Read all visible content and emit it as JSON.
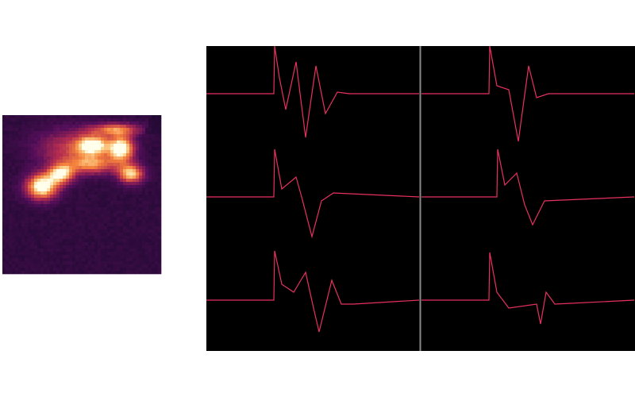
{
  "chart_data": [
    {
      "type": "line",
      "xlim": [
        0,
        268
      ],
      "ylim": [
        -68,
        60
      ],
      "color": "#e8315f",
      "x": [
        0,
        85,
        86,
        92,
        100,
        113,
        125,
        138,
        150,
        165,
        180,
        268
      ],
      "values": [
        0,
        0,
        60,
        20,
        -20,
        40,
        -55,
        35,
        -25,
        2,
        0,
        0
      ]
    },
    {
      "type": "line",
      "xlim": [
        0,
        268
      ],
      "ylim": [
        -68,
        60
      ],
      "color": "#e8315f",
      "x": [
        0,
        85,
        86,
        95,
        110,
        122,
        135,
        145,
        160,
        268
      ],
      "values": [
        0,
        0,
        60,
        10,
        5,
        -60,
        35,
        -5,
        0,
        0
      ]
    },
    {
      "type": "line",
      "xlim": [
        0,
        268
      ],
      "ylim": [
        -68,
        60
      ],
      "color": "#e8315f",
      "x": [
        0,
        85,
        86,
        95,
        113,
        120,
        133,
        145,
        160,
        268
      ],
      "values": [
        0,
        0,
        60,
        10,
        25,
        0,
        -50,
        -5,
        5,
        0
      ]
    },
    {
      "type": "line",
      "xlim": [
        0,
        268
      ],
      "ylim": [
        -68,
        60
      ],
      "color": "#e8315f",
      "x": [
        0,
        95,
        96,
        105,
        120,
        130,
        140,
        155,
        268
      ],
      "values": [
        0,
        0,
        60,
        15,
        30,
        -10,
        -35,
        -5,
        0
      ]
    },
    {
      "type": "line",
      "xlim": [
        0,
        268
      ],
      "ylim": [
        -68,
        60
      ],
      "color": "#e8315f",
      "x": [
        0,
        85,
        86,
        95,
        110,
        125,
        135,
        142,
        158,
        170,
        185,
        268
      ],
      "values": [
        0,
        0,
        62,
        20,
        10,
        35,
        -10,
        -40,
        25,
        -5,
        -5,
        0
      ]
    },
    {
      "type": "line",
      "xlim": [
        0,
        268
      ],
      "ylim": [
        -68,
        60
      ],
      "color": "#e8315f",
      "x": [
        0,
        85,
        86,
        95,
        110,
        145,
        150,
        157,
        168,
        268
      ],
      "values": [
        0,
        0,
        60,
        10,
        -10,
        -5,
        -30,
        10,
        -5,
        0
      ]
    }
  ]
}
